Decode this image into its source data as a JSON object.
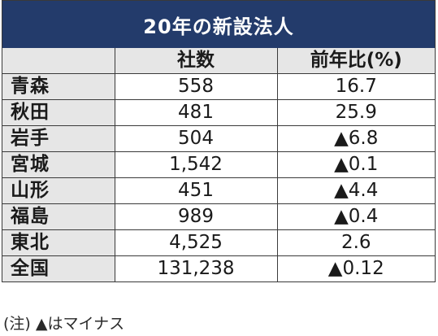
{
  "title": "20年の新設法人",
  "headers": {
    "region": "",
    "count": "社数",
    "ratio": "前年比(%)"
  },
  "rows": [
    {
      "name": "青森",
      "count": "558",
      "ratio": "16.7"
    },
    {
      "name": "秋田",
      "count": "481",
      "ratio": "25.9"
    },
    {
      "name": "岩手",
      "count": "504",
      "ratio": "▲6.8"
    },
    {
      "name": "宮城",
      "count": "1,542",
      "ratio": "▲0.1"
    },
    {
      "name": "山形",
      "count": "451",
      "ratio": "▲4.4"
    },
    {
      "name": "福島",
      "count": "989",
      "ratio": "▲0.4"
    },
    {
      "name": "東北",
      "count": "4,525",
      "ratio": "2.6"
    },
    {
      "name": "全国",
      "count": "131,238",
      "ratio": "▲0.12"
    }
  ],
  "note": "(注) ▲はマイナス",
  "colors": {
    "title_background": "#233b6b",
    "header_background": "#e6e6e6"
  }
}
